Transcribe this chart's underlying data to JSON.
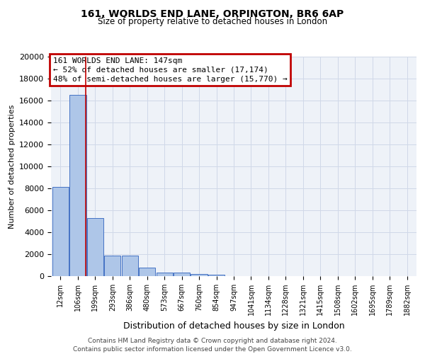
{
  "title1": "161, WORLDS END LANE, ORPINGTON, BR6 6AP",
  "title2": "Size of property relative to detached houses in London",
  "xlabel": "Distribution of detached houses by size in London",
  "ylabel": "Number of detached properties",
  "bar_labels": [
    "12sqm",
    "106sqm",
    "199sqm",
    "293sqm",
    "386sqm",
    "480sqm",
    "573sqm",
    "667sqm",
    "760sqm",
    "854sqm",
    "947sqm",
    "1041sqm",
    "1134sqm",
    "1228sqm",
    "1321sqm",
    "1415sqm",
    "1508sqm",
    "1602sqm",
    "1695sqm",
    "1789sqm",
    "1882sqm"
  ],
  "bar_values": [
    8100,
    16500,
    5300,
    1850,
    1850,
    750,
    350,
    300,
    200,
    150,
    0,
    0,
    0,
    0,
    0,
    0,
    0,
    0,
    0,
    0,
    0
  ],
  "bar_color": "#aec6e8",
  "bar_edgecolor": "#4472c4",
  "vline_color": "#c00000",
  "annotation_title": "161 WORLDS END LANE: 147sqm",
  "annotation_line1": "← 52% of detached houses are smaller (17,174)",
  "annotation_line2": "48% of semi-detached houses are larger (15,770) →",
  "annotation_box_color": "#c00000",
  "ylim": [
    0,
    20000
  ],
  "yticks": [
    0,
    2000,
    4000,
    6000,
    8000,
    10000,
    12000,
    14000,
    16000,
    18000,
    20000
  ],
  "grid_color": "#d0d8e8",
  "bg_color": "#eef2f8",
  "footer1": "Contains HM Land Registry data © Crown copyright and database right 2024.",
  "footer2": "Contains public sector information licensed under the Open Government Licence v3.0."
}
